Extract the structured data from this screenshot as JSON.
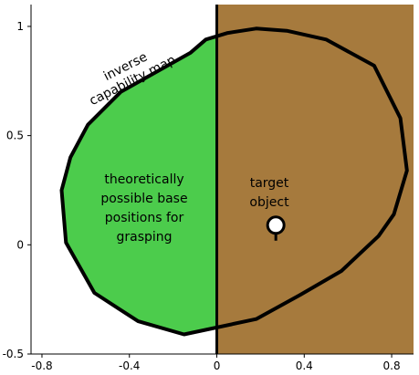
{
  "chart_data": {
    "type": "diagram",
    "xlim": [
      -0.85,
      0.9
    ],
    "ylim": [
      -0.5,
      1.1
    ],
    "x_ticks": [
      -0.8,
      -0.4,
      0,
      0.4,
      0.8
    ],
    "y_ticks": [
      -0.5,
      0,
      0.5,
      1
    ],
    "x_tick_labels": [
      "-0.8",
      "-0.4",
      "0",
      "0.4",
      "0.8"
    ],
    "y_tick_labels": [
      "-0.5",
      "0",
      "0.5",
      "1"
    ],
    "divider_x": 0,
    "region_colors": {
      "feasible": "#4ccc4c",
      "obstacle": "#a67a3d",
      "outline": "#000000"
    },
    "inverse_capability_polygon": [
      [
        -0.05,
        0.94
      ],
      [
        0.05,
        0.97
      ],
      [
        0.18,
        0.99
      ],
      [
        0.32,
        0.98
      ],
      [
        0.5,
        0.94
      ],
      [
        0.72,
        0.82
      ],
      [
        0.84,
        0.58
      ],
      [
        0.87,
        0.34
      ],
      [
        0.81,
        0.14
      ],
      [
        0.74,
        0.04
      ],
      [
        0.57,
        -0.12
      ],
      [
        0.38,
        -0.23
      ],
      [
        0.18,
        -0.34
      ],
      [
        -0.15,
        -0.41
      ],
      [
        -0.36,
        -0.35
      ],
      [
        -0.56,
        -0.22
      ],
      [
        -0.69,
        0.01
      ],
      [
        -0.71,
        0.25
      ],
      [
        -0.67,
        0.4
      ],
      [
        -0.59,
        0.55
      ],
      [
        -0.44,
        0.7
      ],
      [
        -0.28,
        0.79
      ],
      [
        -0.12,
        0.88
      ]
    ],
    "target_object": {
      "x": 0.27,
      "y": 0.09
    },
    "annotations": {
      "map_label": [
        "inverse",
        "capability map"
      ],
      "region_label": [
        "theoretically",
        "possible base",
        "positions for",
        "grasping"
      ],
      "target_label": [
        "target",
        "object"
      ]
    }
  }
}
